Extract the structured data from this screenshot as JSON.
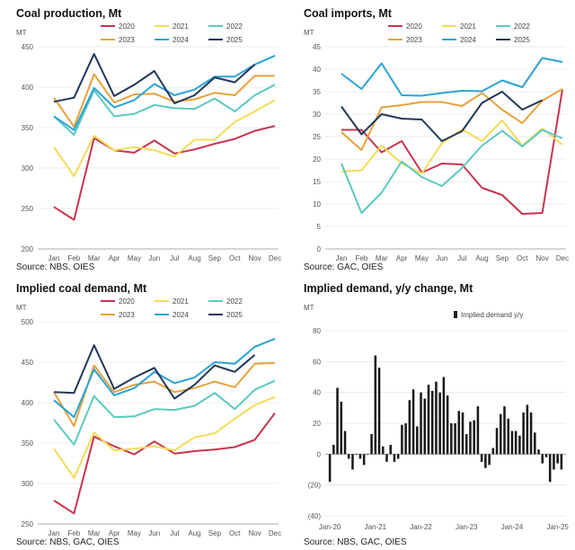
{
  "months": [
    "Jan",
    "Feb",
    "Mar",
    "Apr",
    "May",
    "Jun",
    "Jul",
    "Aug",
    "Sep",
    "Oct",
    "Nov",
    "Dec"
  ],
  "colors": {
    "2020": "#c8334e",
    "2021": "#f3dc57",
    "2022": "#5bc9c0",
    "2023": "#e7a23c",
    "2024": "#2aa3d6",
    "2025": "#213659",
    "bar": "#1a1a1a"
  },
  "chart_data": [
    {
      "id": "coal-production",
      "type": "line",
      "title": "Coal production, Mt",
      "ylabel": "MT",
      "ylim": [
        200,
        450
      ],
      "yticks": [
        200,
        250,
        300,
        350,
        400,
        450
      ],
      "source": "Source: NBS, OIES",
      "legend": "top",
      "series": [
        {
          "name": "2020",
          "values": [
            252,
            236,
            337,
            322,
            319,
            334,
            318,
            323,
            330,
            336,
            346,
            352
          ]
        },
        {
          "name": "2021",
          "values": [
            326,
            290,
            340,
            322,
            326,
            322,
            314,
            335,
            335,
            357,
            370,
            384
          ]
        },
        {
          "name": "2022",
          "values": [
            364,
            341,
            396,
            364,
            367,
            378,
            374,
            373,
            386,
            370,
            390,
            403
          ]
        },
        {
          "name": "2023",
          "values": [
            387,
            351,
            416,
            381,
            391,
            392,
            382,
            385,
            393,
            390,
            414,
            414
          ]
        },
        {
          "name": "2024",
          "values": [
            364,
            347,
            399,
            375,
            384,
            404,
            390,
            397,
            413,
            413,
            428,
            439
          ]
        },
        {
          "name": "2025",
          "values": [
            382,
            387,
            441,
            389,
            403,
            420,
            380,
            390,
            412,
            406,
            428
          ]
        }
      ]
    },
    {
      "id": "coal-imports",
      "type": "line",
      "title": "Coal imports, Mt",
      "ylabel": "MT",
      "ylim": [
        0,
        45
      ],
      "yticks": [
        0,
        5,
        10,
        15,
        20,
        25,
        30,
        35,
        40,
        45
      ],
      "source": "Source: GAC, OIES",
      "legend": "top",
      "series": [
        {
          "name": "2020",
          "values": [
            26.5,
            26.5,
            21.5,
            24,
            17,
            19,
            18.8,
            13.6,
            12,
            7.8,
            8,
            35.5
          ]
        },
        {
          "name": "2021",
          "values": [
            17.2,
            17.5,
            23,
            19,
            16.8,
            23.5,
            26.6,
            24,
            28.6,
            23,
            26.8,
            23.2
          ]
        },
        {
          "name": "2022",
          "values": [
            19,
            8,
            12.5,
            19.5,
            16,
            14,
            18,
            23,
            26.3,
            22.8,
            26.5,
            24.6
          ]
        },
        {
          "name": "2023",
          "values": [
            26,
            22,
            31.5,
            32,
            32.7,
            32.7,
            31.8,
            34.7,
            31,
            28,
            33,
            35.6
          ]
        },
        {
          "name": "2024",
          "values": [
            39,
            35.6,
            41.3,
            34.2,
            34.1,
            34.7,
            35.2,
            35.1,
            37.5,
            36,
            42.5,
            41.6
          ]
        },
        {
          "name": "2025",
          "values": [
            31.7,
            25.5,
            30,
            29,
            28.8,
            24,
            26.2,
            32.5,
            35,
            31,
            33.1
          ]
        }
      ]
    },
    {
      "id": "implied-demand",
      "type": "line",
      "title": "Implied coal demand, Mt",
      "ylabel": "MT",
      "ylim": [
        250,
        500
      ],
      "yticks": [
        250,
        300,
        350,
        400,
        450,
        500
      ],
      "source": "Source: NBS, GAC, OIES",
      "legend": "top",
      "series": [
        {
          "name": "2020",
          "values": [
            279,
            263,
            358,
            346,
            336,
            352,
            337,
            340,
            342,
            345,
            354,
            387
          ]
        },
        {
          "name": "2021",
          "values": [
            343,
            307,
            363,
            341,
            343,
            346,
            341,
            357,
            362,
            380,
            397,
            407
          ]
        },
        {
          "name": "2022",
          "values": [
            379,
            348,
            408,
            382,
            383,
            392,
            391,
            396,
            412,
            392,
            416,
            427
          ]
        },
        {
          "name": "2023",
          "values": [
            413,
            371,
            446,
            413,
            422,
            426,
            413,
            418,
            426,
            419,
            448,
            449
          ]
        },
        {
          "name": "2024",
          "values": [
            403,
            382,
            441,
            409,
            418,
            438,
            424,
            431,
            450,
            448,
            469,
            479
          ]
        },
        {
          "name": "2025",
          "values": [
            413,
            412,
            471,
            417,
            431,
            443,
            405,
            422,
            446,
            438,
            459
          ]
        }
      ]
    },
    {
      "id": "implied-demand-yoy",
      "type": "bar",
      "title": "Implied demand, y/y change, Mt",
      "ylabel": "MT",
      "ylim": [
        -40,
        80
      ],
      "yticks": [
        -40,
        -20,
        0,
        20,
        40,
        60,
        80
      ],
      "ytick_labels": [
        "(40)",
        "(20)",
        "0",
        "20",
        "40",
        "60",
        "80"
      ],
      "source": "Source: NBS, GAC, OIES",
      "legend_label": "Implied demand y/y",
      "x_tick_labels": [
        "Jan-20",
        "Jan-21",
        "Jan-22",
        "Jan-23",
        "Jan-24",
        "Jan-25"
      ],
      "start": "Jan-20",
      "values": [
        -18,
        6,
        43,
        34,
        15,
        -3,
        -10,
        0,
        -3,
        -7,
        0,
        13,
        64,
        56,
        5,
        -5,
        6,
        -5,
        -3,
        19,
        20,
        35,
        42,
        18,
        40,
        36,
        45,
        41,
        47,
        40,
        50,
        38,
        20,
        20,
        28,
        27,
        13,
        21,
        22,
        31,
        -5,
        -9,
        -7,
        4,
        17,
        26,
        31,
        23,
        15,
        15,
        12,
        27,
        32,
        27,
        14,
        3,
        -6,
        -2,
        -18,
        -10,
        -6,
        -10
      ]
    }
  ]
}
